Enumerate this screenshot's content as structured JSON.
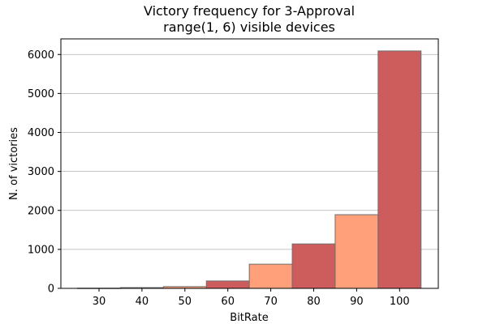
{
  "chart_data": {
    "type": "bar",
    "title": [
      "Victory frequency for 3-Approval",
      "range(1, 6) visible devices"
    ],
    "xlabel": "BitRate",
    "ylabel": "N. of victories",
    "categories": [
      "30",
      "40",
      "50",
      "60",
      "70",
      "80",
      "90",
      "100"
    ],
    "values": [
      5,
      20,
      45,
      190,
      620,
      1140,
      1890,
      6090
    ],
    "colors": [
      "#cd5c5c",
      "#cd5c5c",
      "#ffa07a",
      "#cd5c5c",
      "#ffa07a",
      "#cd5c5c",
      "#ffa07a",
      "#cd5c5c"
    ],
    "bar_edge_color": "#6e6e6e",
    "ylim": [
      0,
      6400
    ],
    "yticks": [
      0,
      1000,
      2000,
      3000,
      4000,
      5000,
      6000
    ],
    "grid": "horizontal",
    "legend": "none"
  }
}
